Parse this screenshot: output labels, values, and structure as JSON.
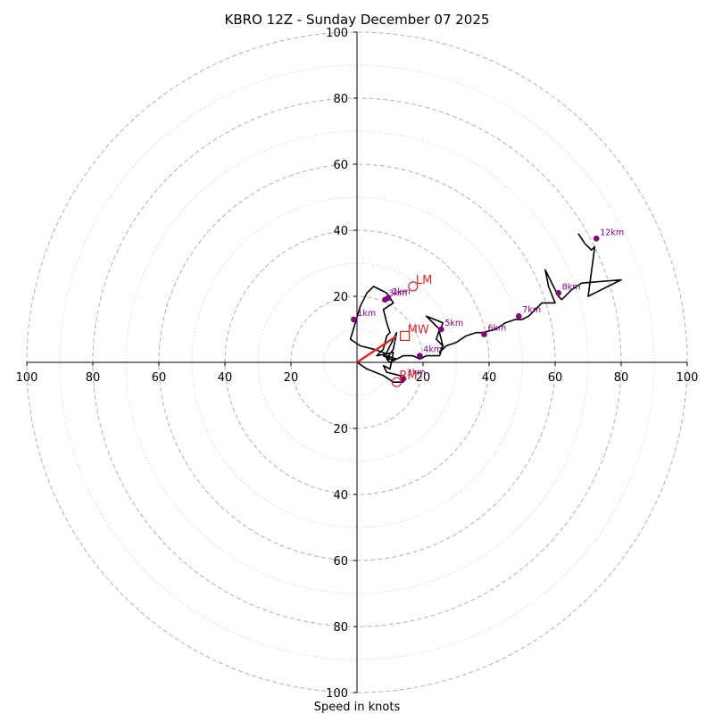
{
  "chart_data": {
    "type": "hodograph",
    "title": "KBRO 12Z - Sunday December 07 2025",
    "xlabel": "Speed in knots",
    "ylabel": "",
    "xlim": [
      -100,
      100
    ],
    "ylim": [
      -100,
      100
    ],
    "units": "knots",
    "rings_major": [
      20,
      40,
      60,
      80,
      100
    ],
    "rings_minor": [
      10,
      30,
      50,
      70,
      90
    ],
    "x_tick_labels": [
      "100",
      "80",
      "60",
      "40",
      "20",
      "20",
      "40",
      "60",
      "80",
      "100"
    ],
    "x_tick_values": [
      -100,
      -80,
      -60,
      -40,
      -20,
      20,
      40,
      60,
      80,
      100
    ],
    "y_tick_labels": [
      "100",
      "80",
      "60",
      "40",
      "20",
      "20",
      "40",
      "60",
      "80",
      "100"
    ],
    "y_tick_values": [
      100,
      80,
      60,
      40,
      20,
      -20,
      -40,
      -60,
      -80,
      -100
    ],
    "trace": {
      "name": "wind hodograph",
      "u": [
        0,
        3,
        8,
        11,
        14,
        13,
        9,
        8,
        10,
        11,
        6,
        8,
        9,
        10,
        9,
        8,
        11,
        9,
        7,
        5,
        3,
        1,
        -2,
        1,
        5,
        8,
        10,
        9,
        9,
        12,
        10,
        9,
        11,
        12,
        9,
        8,
        10,
        12,
        14,
        17,
        19,
        21,
        22,
        24,
        25,
        26,
        25,
        26,
        21,
        25,
        24,
        26,
        25,
        27,
        30,
        33,
        36,
        38,
        42,
        45,
        48,
        50,
        52,
        54,
        55,
        56,
        60,
        58,
        57,
        61,
        62,
        64,
        65,
        68,
        80,
        72,
        70,
        72,
        71,
        69,
        67
      ],
      "v": [
        0,
        -2,
        -4,
        -6,
        -6,
        -4,
        -3,
        -1,
        -2,
        3,
        2,
        4,
        8,
        9,
        12,
        16,
        18,
        21,
        22,
        23,
        21,
        17,
        7,
        5,
        4,
        3,
        1,
        1,
        2,
        1,
        0,
        1,
        4,
        9,
        3,
        2,
        1,
        1,
        2,
        2,
        1,
        2,
        2,
        2,
        2,
        5,
        9,
        12,
        14,
        10,
        7,
        5,
        3,
        5,
        6,
        8,
        9,
        9,
        10,
        12,
        13,
        13,
        14,
        16,
        17,
        18,
        18,
        23,
        28,
        20,
        19,
        21,
        22,
        24,
        25,
        21,
        20,
        35,
        34,
        36,
        39
      ]
    },
    "height_points": [
      {
        "label": "1km",
        "u": -1,
        "v": 13.0
      },
      {
        "label": "2km",
        "u": 9.5,
        "v": 19.5
      },
      {
        "label": "3km",
        "u": 8.5,
        "v": 19.0
      },
      {
        "label": "4km",
        "u": 19.0,
        "v": 2.0
      },
      {
        "label": "5km",
        "u": 25.5,
        "v": 10.0
      },
      {
        "label": "6km",
        "u": 38.5,
        "v": 8.5
      },
      {
        "label": "7km",
        "u": 49.0,
        "v": 14.0
      },
      {
        "label": "8km",
        "u": 61.0,
        "v": 21.0
      },
      {
        "label": "12km",
        "u": 72.5,
        "v": 37.5
      },
      {
        "label": "3km",
        "u": 14.0,
        "v": -5.0
      }
    ],
    "shear_vector": {
      "u0": 0,
      "v0": 0,
      "u1": 12,
      "v1": 8,
      "color": "#d62728"
    },
    "storm_markers": [
      {
        "label": "LM",
        "u": 17,
        "v": 23,
        "shape": "circle"
      },
      {
        "label": "MW",
        "u": 14.5,
        "v": 8,
        "shape": "square"
      },
      {
        "label": "RM",
        "u": 12,
        "v": -6,
        "shape": "circle"
      }
    ],
    "colors": {
      "trace": "#000000",
      "height_points": "#800080",
      "markers": "#d62728",
      "grid_major": "#b0b0b0",
      "grid_minor": "#cccccc"
    }
  }
}
